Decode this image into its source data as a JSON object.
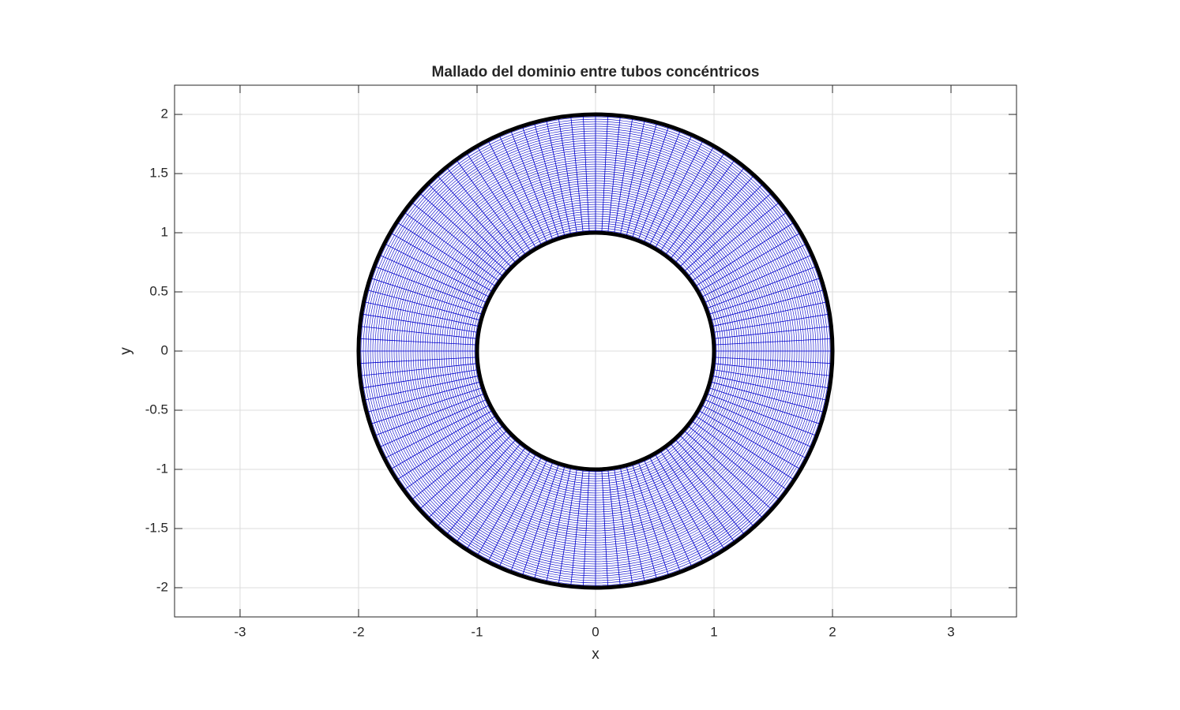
{
  "chart_data": {
    "type": "mesh",
    "title": "Mallado del dominio entre tubos concéntricos",
    "xlabel": "x",
    "ylabel": "y",
    "inner_radius": 1,
    "outer_radius": 2,
    "n_theta": 120,
    "n_r": 50,
    "mesh_color": "#0000cc",
    "boundary_color": "#000000",
    "xlim": [
      -3.553,
      3.553
    ],
    "ylim": [
      -2.247,
      2.247
    ],
    "xticks": [
      -3,
      -2,
      -1,
      0,
      1,
      2,
      3
    ],
    "yticks": [
      -2,
      -1.5,
      -1,
      -0.5,
      0,
      0.5,
      1,
      1.5,
      2
    ],
    "grid": true
  }
}
